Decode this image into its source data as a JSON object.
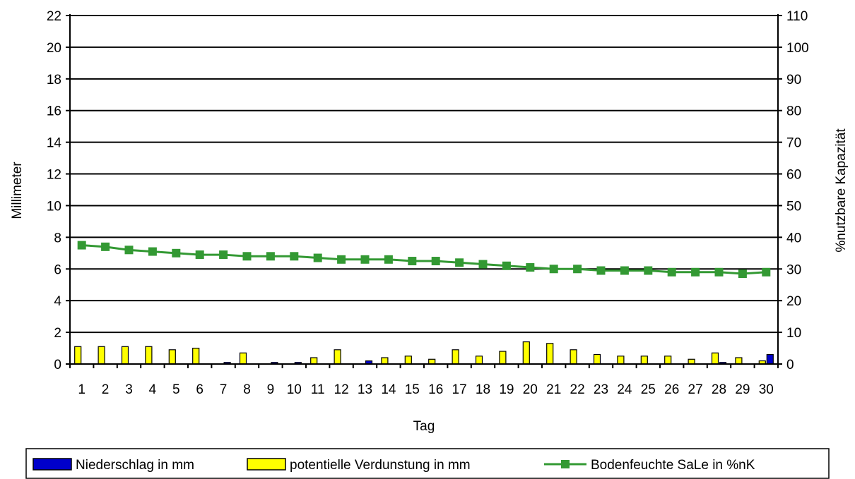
{
  "chart_data": {
    "type": "bar",
    "x": [
      "1",
      "2",
      "3",
      "4",
      "5",
      "6",
      "7",
      "8",
      "9",
      "10",
      "11",
      "12",
      "13",
      "14",
      "15",
      "16",
      "17",
      "18",
      "19",
      "20",
      "21",
      "22",
      "23",
      "24",
      "25",
      "26",
      "27",
      "28",
      "29",
      "30"
    ],
    "xlabel": "Tag",
    "ylabel": "Millimeter",
    "y2label": "%nutzbare Kapazität",
    "ylim": [
      0,
      22
    ],
    "yticks": [
      "0",
      "2",
      "4",
      "6",
      "8",
      "10",
      "12",
      "14",
      "16",
      "18",
      "20",
      "22"
    ],
    "y2lim": [
      0,
      110
    ],
    "y2ticks": [
      "0",
      "10",
      "20",
      "30",
      "40",
      "50",
      "60",
      "70",
      "80",
      "90",
      "100",
      "110"
    ],
    "grid": true,
    "legend_position": "bottom",
    "series": [
      {
        "name": "Niederschlag in mm",
        "type": "bar",
        "axis": "left",
        "color": "#0000cc",
        "values": [
          0,
          0,
          0,
          0,
          0,
          0,
          0.1,
          0,
          0.1,
          0.1,
          0,
          0,
          0.2,
          0,
          0,
          0,
          0,
          0,
          0,
          0,
          0,
          0,
          0,
          0,
          0,
          0,
          0,
          0.1,
          0,
          0.6
        ]
      },
      {
        "name": "potentielle Verdunstung in mm",
        "type": "bar",
        "axis": "left",
        "color": "#ffff00",
        "values": [
          1.1,
          1.1,
          1.1,
          1.1,
          0.9,
          1.0,
          0,
          0.7,
          0,
          0,
          0.4,
          0.9,
          0,
          0.4,
          0.5,
          0.3,
          0.9,
          0.5,
          0.8,
          1.4,
          1.3,
          0.9,
          0.6,
          0.5,
          0.5,
          0.5,
          0.3,
          0.7,
          0.4,
          0.2
        ]
      },
      {
        "name": "Bodenfeuchte SaLe in %nK",
        "type": "line",
        "axis": "right",
        "color": "#339933",
        "values": [
          37.5,
          37,
          36,
          35.5,
          35,
          34.5,
          34.5,
          34,
          34,
          34,
          33.5,
          33,
          33,
          33,
          32.5,
          32.5,
          32,
          31.5,
          31,
          30.5,
          30,
          30,
          29.5,
          29.5,
          29.5,
          29,
          29,
          29,
          28.5,
          29
        ]
      }
    ]
  }
}
